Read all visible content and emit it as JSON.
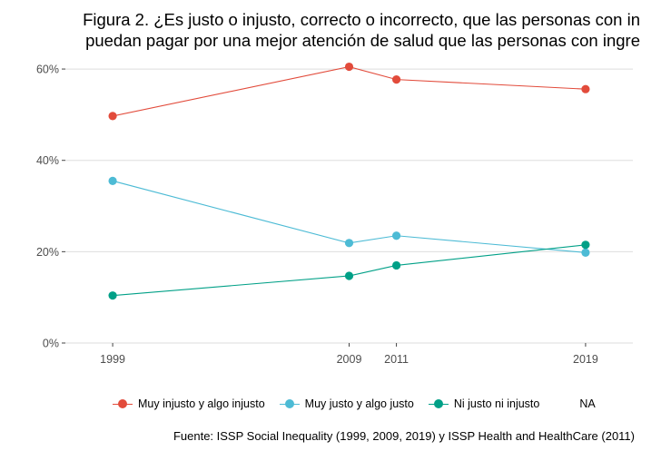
{
  "title_lines": [
    "Figura 2. ¿Es justo o injusto, correcto o incorrecto, que las personas con in",
    "puedan pagar por una mejor atención de salud que las personas con ingre"
  ],
  "caption": "Fuente: ISSP Social Inequality (1999, 2009, 2019) y ISSP Health and HealthCare (2011)",
  "chart_data": {
    "type": "line",
    "x": [
      1999,
      2009,
      2011,
      2019
    ],
    "xlim": [
      1997,
      2021
    ],
    "ylim": [
      0,
      0.62
    ],
    "yticks": [
      0,
      0.2,
      0.4,
      0.6
    ],
    "ytick_labels": [
      "0%",
      "20%",
      "40%",
      "60%"
    ],
    "xtick_labels": [
      "1999",
      "2009",
      "2011",
      "2019"
    ],
    "grid": true,
    "legend_position": "bottom",
    "series": [
      {
        "name": "Muy injusto y algo injusto",
        "color": "#E24B3B",
        "values": [
          0.497,
          0.605,
          0.577,
          0.556
        ]
      },
      {
        "name": "Muy justo y algo justo",
        "color": "#4DBBD5",
        "values": [
          0.355,
          0.219,
          0.235,
          0.198
        ]
      },
      {
        "name": "Ni justo ni injusto",
        "color": "#00A087",
        "values": [
          0.104,
          0.147,
          0.17,
          0.215
        ]
      }
    ],
    "extra_legend_entries": [
      "NA"
    ]
  }
}
